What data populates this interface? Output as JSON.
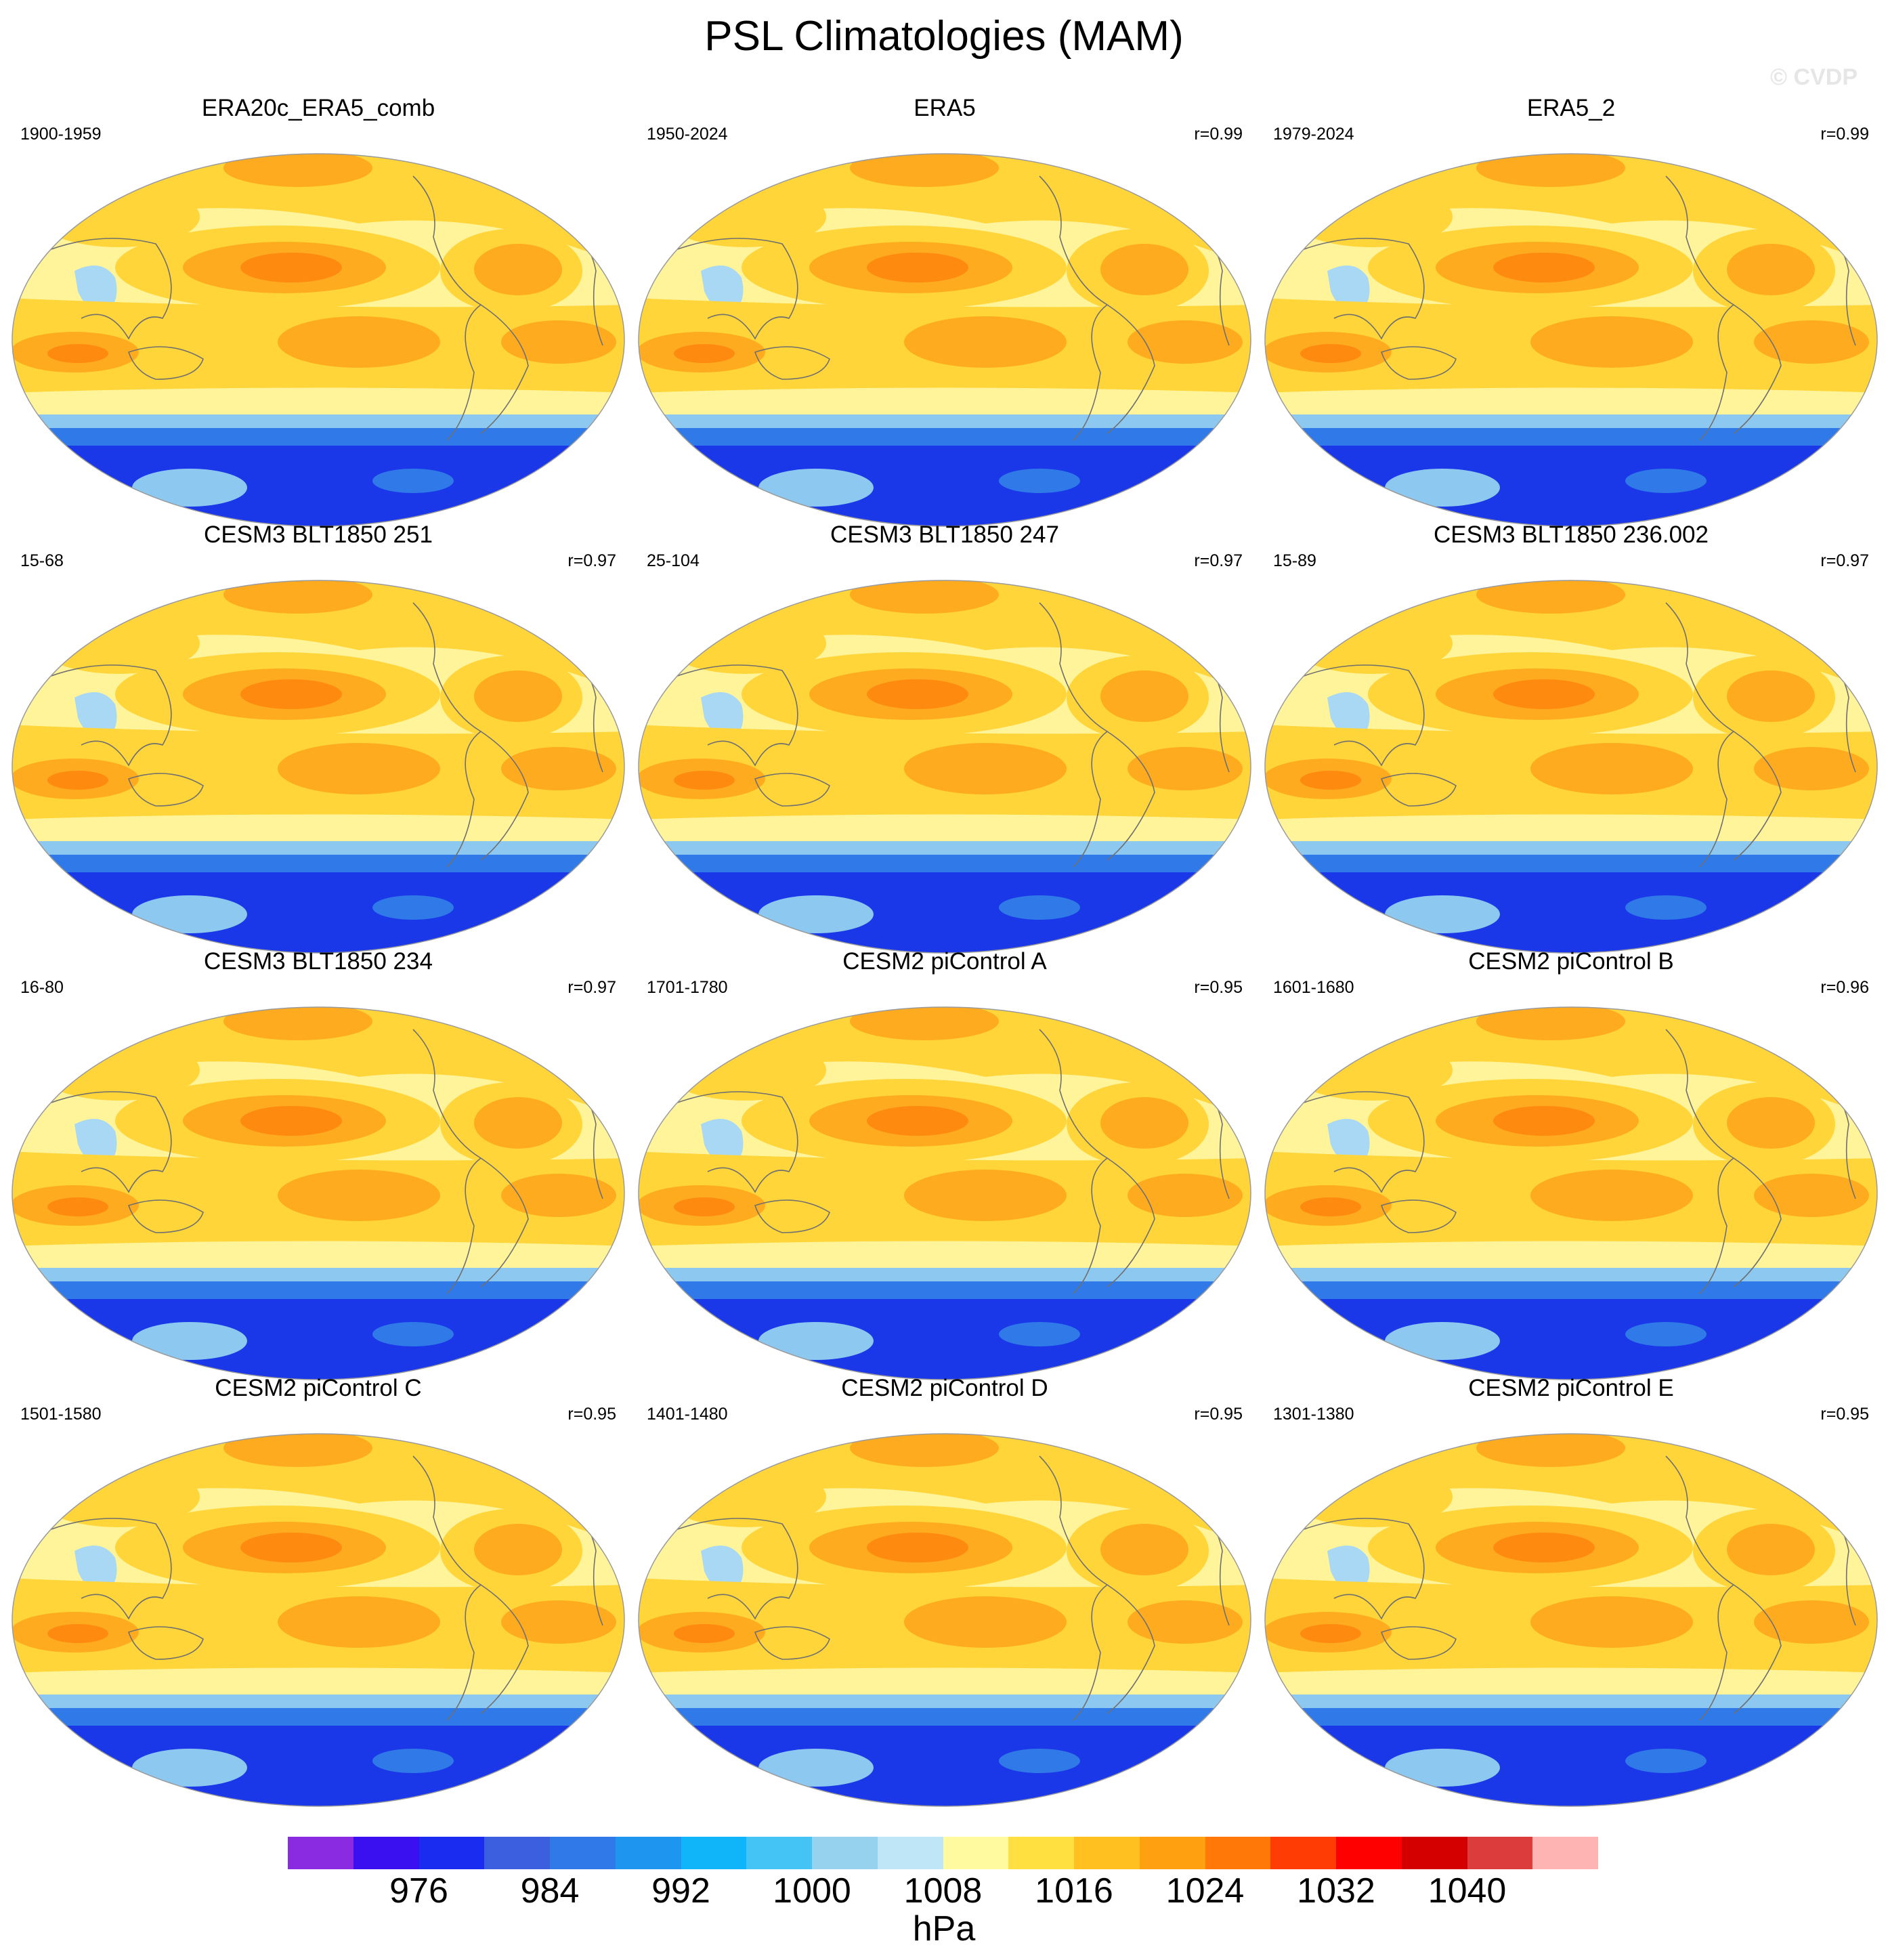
{
  "title": "PSL Climatologies (MAM)",
  "watermark": "© CVDP",
  "panels": [
    {
      "title": "ERA20c_ERA5_comb",
      "period": "1900-1959",
      "corr": ""
    },
    {
      "title": "ERA5",
      "period": "1950-2024",
      "corr": "r=0.99"
    },
    {
      "title": "ERA5_2",
      "period": "1979-2024",
      "corr": "r=0.99"
    },
    {
      "title": "CESM3 BLT1850 251",
      "period": "15-68",
      "corr": "r=0.97"
    },
    {
      "title": "CESM3 BLT1850 247",
      "period": "25-104",
      "corr": "r=0.97"
    },
    {
      "title": "CESM3 BLT1850 236.002",
      "period": "15-89",
      "corr": "r=0.97"
    },
    {
      "title": "CESM3 BLT1850 234",
      "period": "16-80",
      "corr": "r=0.97"
    },
    {
      "title": "CESM2 piControl A",
      "period": "1701-1780",
      "corr": "r=0.95"
    },
    {
      "title": "CESM2 piControl B",
      "period": "1601-1680",
      "corr": "r=0.96"
    },
    {
      "title": "CESM2 piControl C",
      "period": "1501-1580",
      "corr": "r=0.95"
    },
    {
      "title": "CESM2 piControl D",
      "period": "1401-1480",
      "corr": "r=0.95"
    },
    {
      "title": "CESM2 piControl E",
      "period": "1301-1380",
      "corr": "r=0.95"
    }
  ],
  "colorbar": {
    "units": "hPa",
    "labels": [
      "976",
      "984",
      "992",
      "1000",
      "1008",
      "1016",
      "1024",
      "1032",
      "1040"
    ],
    "colors": [
      "#8a2be2",
      "#3a10f0",
      "#1a2cf0",
      "#3c5fe0",
      "#2f7ae8",
      "#1e96f0",
      "#10b4f8",
      "#44c4f4",
      "#96d2ee",
      "#bee6f6",
      "#fffaa0",
      "#ffe040",
      "#ffc020",
      "#ffa010",
      "#ff7808",
      "#ff3c04",
      "#ff0000",
      "#d40000",
      "#dc3c3c",
      "#ffb4b4"
    ]
  },
  "map_colors": {
    "ocean_base": "#fff49a",
    "subtropical_high_outer": "#ffd53a",
    "subtropical_high_inner": "#ffab1f",
    "subtropical_high_core": "#ff8a10",
    "southern_ocean_outer": "#8cc8f0",
    "southern_ocean_mid": "#2f7ae8",
    "southern_ocean_inner": "#1a38e8",
    "tibet_low": "#a8d8f4",
    "coastline": "#6f6f6f"
  }
}
